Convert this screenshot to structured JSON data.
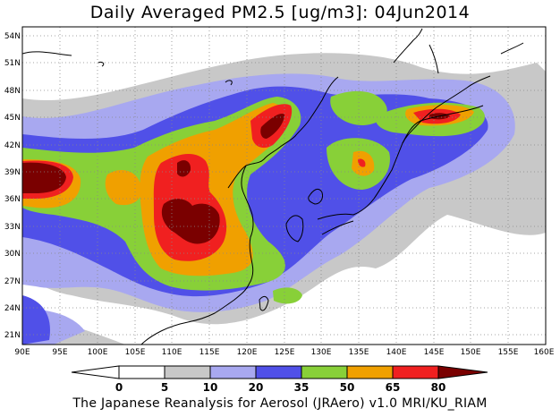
{
  "title": "Daily Averaged PM2.5 [ug/m3]: 04Jun2014",
  "credit": "The Japanese Reanalysis for Aerosol (JRAero) v1.0 MRI/KU_RIAM",
  "map": {
    "lon_range": [
      90,
      160
    ],
    "lat_range": [
      20,
      55
    ],
    "lon_ticks": [
      "90E",
      "95E",
      "100E",
      "105E",
      "110E",
      "115E",
      "120E",
      "125E",
      "130E",
      "135E",
      "140E",
      "145E",
      "150E",
      "155E",
      "160E"
    ],
    "lat_ticks": [
      "21N",
      "24N",
      "27N",
      "30N",
      "33N",
      "36N",
      "39N",
      "42N",
      "45N",
      "48N",
      "51N",
      "54N"
    ]
  },
  "colorbar": {
    "levels": [
      "0",
      "5",
      "10",
      "20",
      "35",
      "50",
      "65",
      "80"
    ],
    "colors": [
      "#ffffff",
      "#c8c8c8",
      "#a8a8f0",
      "#5050e8",
      "#88d038",
      "#f0a000",
      "#f02020",
      "#7a0000"
    ]
  }
}
